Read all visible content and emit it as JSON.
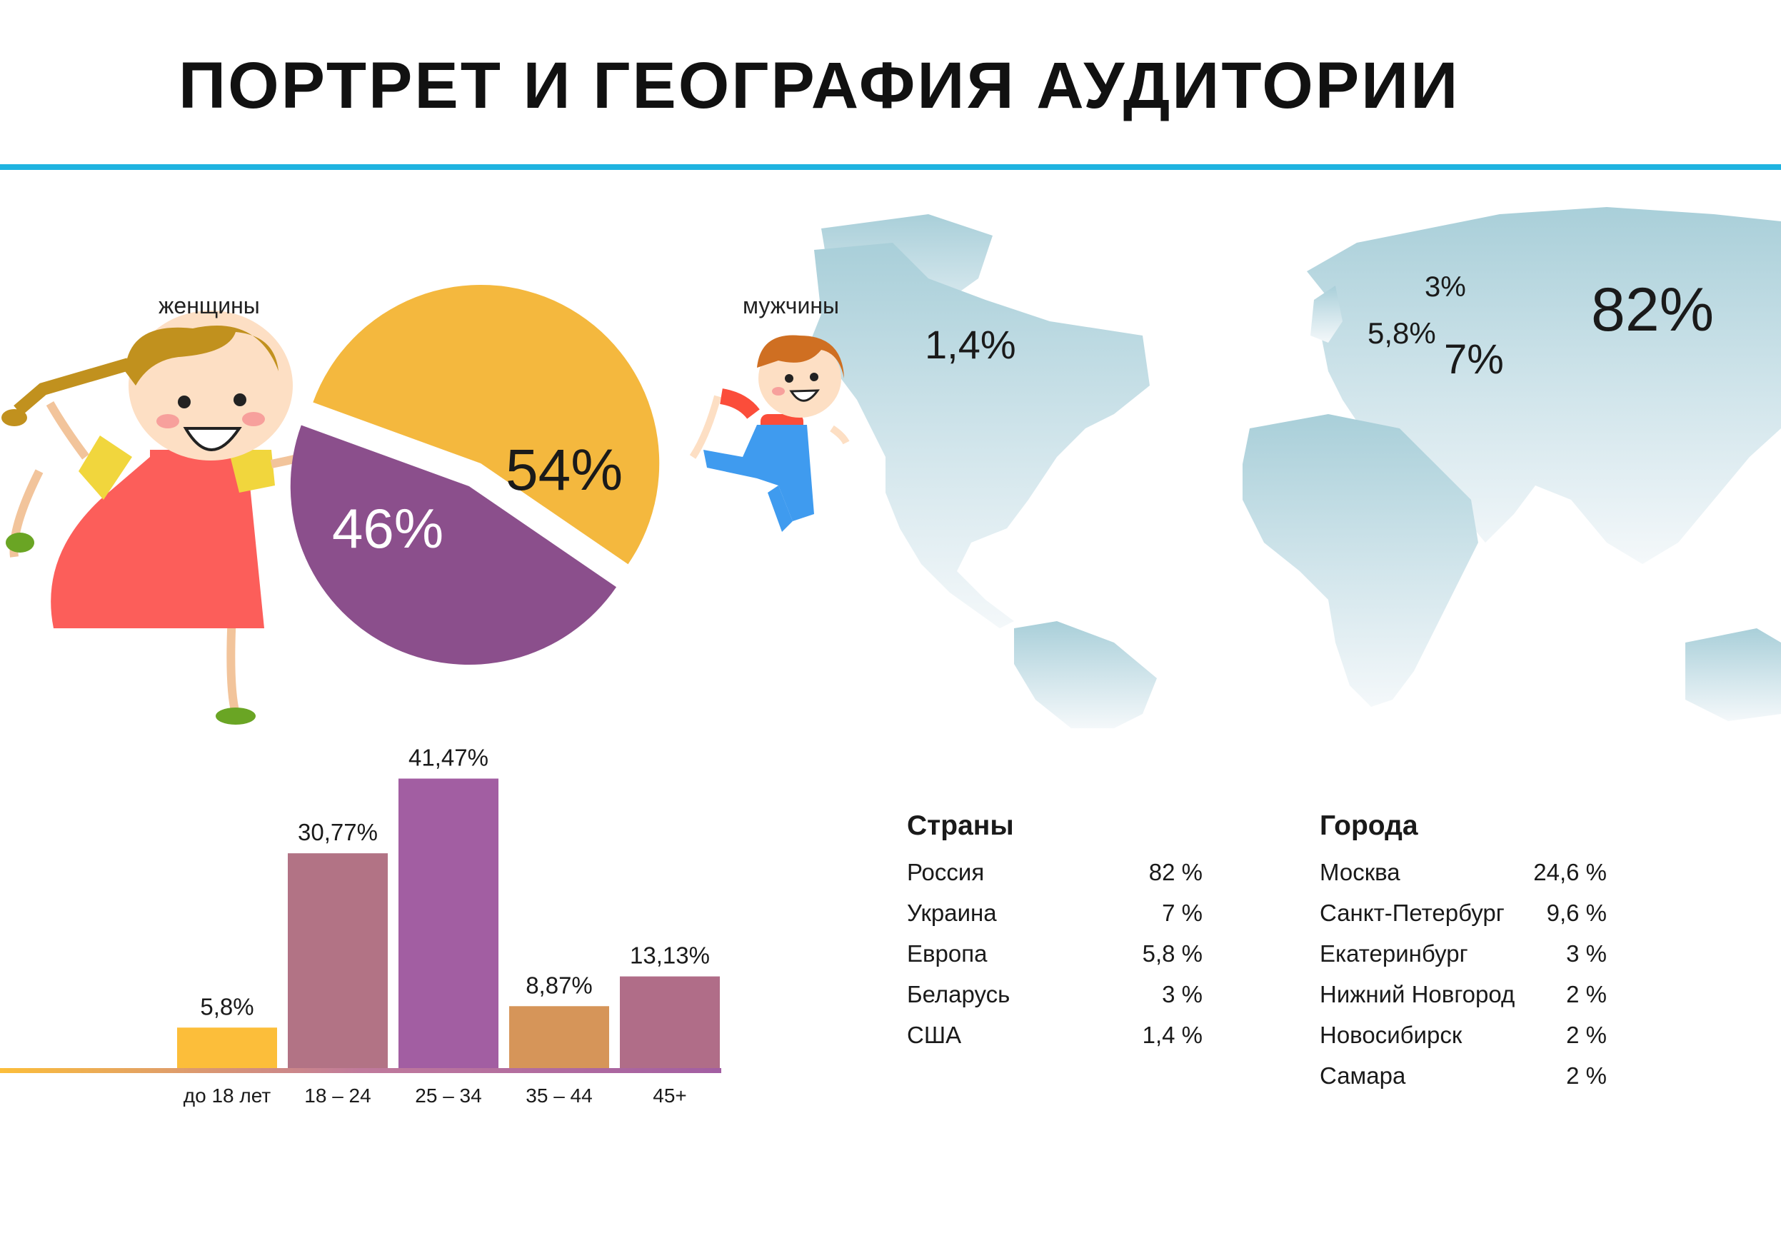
{
  "header": {
    "title": "ПОРТРЕТ И ГЕОГРАФИЯ АУДИТОРИИ"
  },
  "colors": {
    "accent_rule": "#1fb3e0",
    "women": "#8b4f8c",
    "men": "#f4b83e",
    "bar_u18": "#fcbe3a",
    "bar_18_24": "#b27385",
    "bar_25_34": "#a25ea2",
    "bar_35_44": "#d69559",
    "bar_45": "#b06d88"
  },
  "icons": [
    "girl-illustration",
    "boy-illustration",
    "world-map"
  ],
  "chart_data": [
    {
      "type": "pie",
      "labels": [
        "женщины",
        "мужчины"
      ],
      "values": [
        46,
        54
      ],
      "value_labels": [
        "46%",
        "54%"
      ]
    },
    {
      "type": "bar",
      "categories": [
        "до 18 лет",
        "18 – 24",
        "25 – 34",
        "35 – 44",
        "45+"
      ],
      "values": [
        5.8,
        30.77,
        41.47,
        8.87,
        13.13
      ],
      "value_labels": [
        "5,8%",
        "30,77%",
        "41,47%",
        "8,87%",
        "13,13%"
      ],
      "ylim": [
        0,
        45
      ]
    }
  ],
  "map": {
    "labels": [
      {
        "region": "США",
        "text": "1,4%"
      },
      {
        "region": "Беларусь",
        "text": "3%"
      },
      {
        "region": "Европа",
        "text": "5,8%"
      },
      {
        "region": "Украина",
        "text": "7%"
      },
      {
        "region": "Россия",
        "text": "82%"
      }
    ]
  },
  "countries": {
    "heading": "Страны",
    "rows": [
      {
        "name": "Россия",
        "value": "82 %"
      },
      {
        "name": "Украина",
        "value": "7 %"
      },
      {
        "name": "Европа",
        "value": "5,8 %"
      },
      {
        "name": "Беларусь",
        "value": "3 %"
      },
      {
        "name": "США",
        "value": "1,4 %"
      }
    ]
  },
  "cities": {
    "heading": "Города",
    "rows": [
      {
        "name": "Москва",
        "value": "24,6 %"
      },
      {
        "name": "Санкт-Петербург",
        "value": "9,6 %"
      },
      {
        "name": "Екатеринбург",
        "value": "3 %"
      },
      {
        "name": "Нижний Новгород",
        "value": "2 %"
      },
      {
        "name": "Новосибирск",
        "value": "2 %"
      },
      {
        "name": "Самара",
        "value": "2 %"
      }
    ]
  }
}
